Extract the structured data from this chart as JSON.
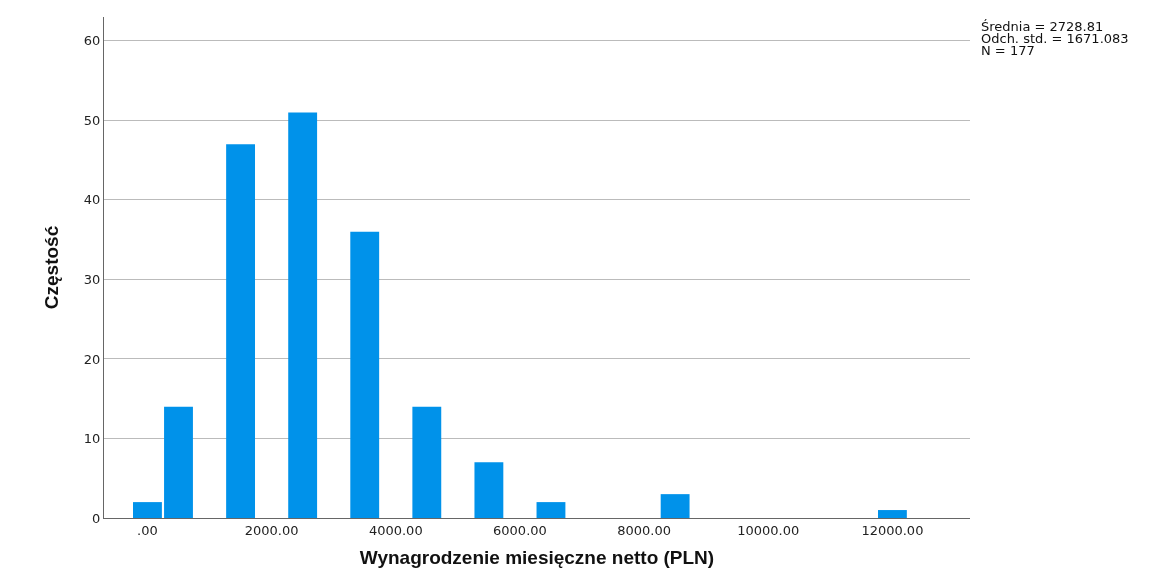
{
  "chart_data": {
    "type": "histogram",
    "xlabel": "Wynagrodzenie miesięczne netto (PLN)",
    "ylabel": "Częstość",
    "bins": [
      -250,
      250,
      750,
      1250,
      1750,
      2250,
      2750,
      3250,
      3750,
      4250,
      4750,
      5250,
      5750,
      6250,
      6750,
      7250,
      7750,
      8250,
      8750,
      9250,
      9750,
      10250,
      10750,
      11250,
      11750,
      12250
    ],
    "values": [
      2,
      14,
      0,
      47,
      0,
      51,
      0,
      36,
      0,
      14,
      0,
      7,
      0,
      2,
      0,
      0,
      0,
      3,
      0,
      0,
      0,
      0,
      0,
      0,
      1
    ],
    "color": "#0092ea",
    "xlim": [
      -700,
      13250
    ],
    "xticks": [
      {
        "value": 0,
        "label": ".00"
      },
      {
        "value": 2000,
        "label": "2000.00"
      },
      {
        "value": 4000,
        "label": "4000.00"
      },
      {
        "value": 6000,
        "label": "6000.00"
      },
      {
        "value": 8000,
        "label": "8000.00"
      },
      {
        "value": 10000,
        "label": "10000.00"
      },
      {
        "value": 12000,
        "label": "12000.00"
      }
    ],
    "ylim": [
      0,
      63
    ],
    "yticks": [
      0,
      10,
      20,
      30,
      40,
      50,
      60
    ],
    "grid": "y",
    "annotations": [
      "Średnia = 2728.81",
      "Odch. std. = 1671.083",
      "N = 177"
    ]
  }
}
